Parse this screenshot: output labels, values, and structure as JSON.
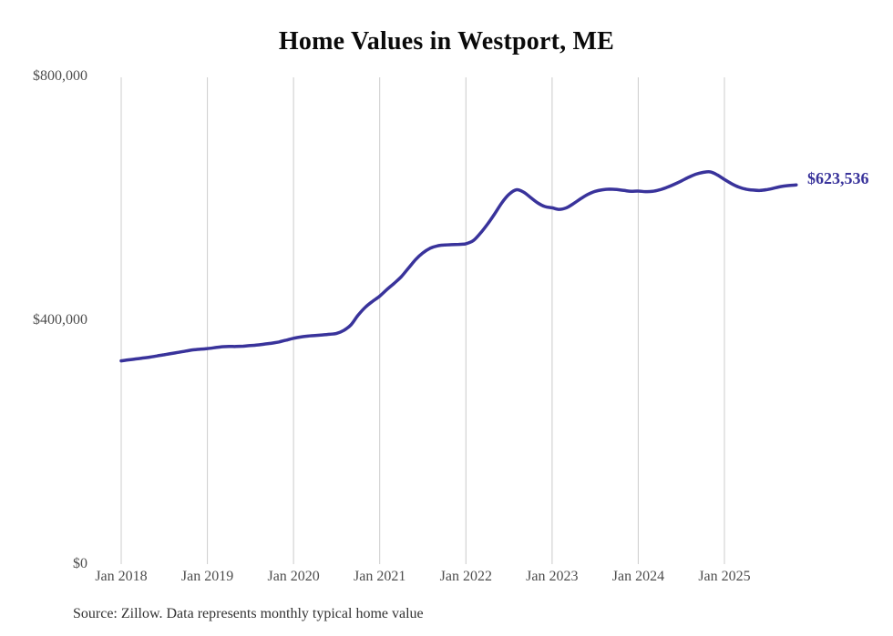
{
  "chart_data": {
    "type": "line",
    "title": "Home Values in Westport, ME",
    "source_note": "Source: Zillow. Data represents monthly typical home value",
    "end_label": "$623,536",
    "end_value": 623536,
    "line_color": "#39339b",
    "grid_color": "#cccccc",
    "axis_text_color": "#4d4d4d",
    "ylim": [
      0,
      800000
    ],
    "grid": "vertical-only",
    "legend": "none",
    "y_ticks": [
      {
        "label": "$800,000",
        "value": 800000
      },
      {
        "label": "$400,000",
        "value": 400000
      },
      {
        "label": "$0",
        "value": 0
      }
    ],
    "x_ticks": [
      {
        "label": "Jan 2018",
        "month_index": 0
      },
      {
        "label": "Jan 2019",
        "month_index": 12
      },
      {
        "label": "Jan 2020",
        "month_index": 24
      },
      {
        "label": "Jan 2021",
        "month_index": 36
      },
      {
        "label": "Jan 2022",
        "month_index": 48
      },
      {
        "label": "Jan 2023",
        "month_index": 60
      },
      {
        "label": "Jan 2024",
        "month_index": 72
      },
      {
        "label": "Jan 2025",
        "month_index": 84
      }
    ],
    "series": [
      {
        "name": "Typical home value",
        "frequency": "monthly",
        "start": "Jan 2018",
        "values": [
          335000,
          336500,
          338000,
          339500,
          341000,
          343000,
          345000,
          347000,
          349000,
          351000,
          353000,
          354000,
          355000,
          356500,
          358000,
          358500,
          358500,
          359000,
          360000,
          361000,
          362500,
          364000,
          366000,
          369000,
          372000,
          374000,
          375500,
          376500,
          377500,
          378500,
          380000,
          385000,
          394000,
          410000,
          423000,
          432500,
          441000,
          452000,
          462000,
          473000,
          487000,
          501000,
          512000,
          519500,
          523500,
          525000,
          525500,
          526000,
          527000,
          532000,
          544000,
          559000,
          576000,
          594000,
          608000,
          615500,
          612000,
          603000,
          594000,
          588000,
          586000,
          583500,
          586000,
          593000,
          601000,
          608000,
          613000,
          615500,
          616500,
          616000,
          614500,
          613000,
          613500,
          612500,
          613000,
          615500,
          619500,
          624500,
          630000,
          636000,
          641000,
          644000,
          645000,
          640000,
          632500,
          625500,
          620000,
          616500,
          615000,
          614500,
          616000,
          618500,
          621000,
          622500,
          623536
        ]
      }
    ]
  }
}
